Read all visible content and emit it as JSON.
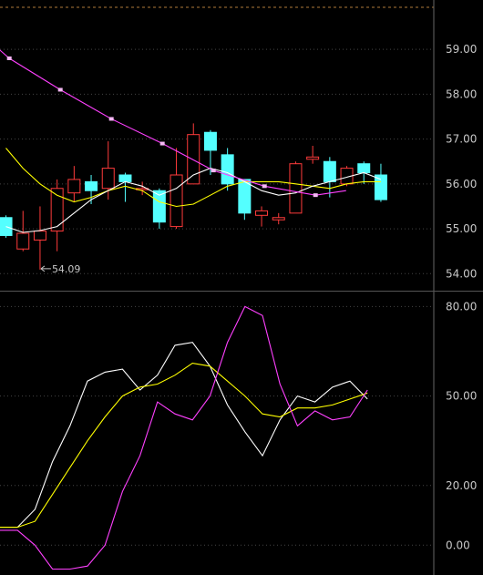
{
  "chart_data": [
    {
      "type": "candlestick",
      "ylim": [
        53.6,
        60.1
      ],
      "y_ticks": [
        54.0,
        55.0,
        56.0,
        57.0,
        58.0,
        59.0
      ],
      "tick_labels": [
        "54.00",
        "55.00",
        "56.00",
        "57.00",
        "58.00",
        "59.00"
      ],
      "grid": true,
      "candles": [
        {
          "o": 55.25,
          "c": 54.85,
          "h": 55.3,
          "l": 54.8
        },
        {
          "o": 54.55,
          "c": 54.9,
          "h": 55.4,
          "l": 54.5
        },
        {
          "o": 54.75,
          "c": 54.95,
          "h": 55.5,
          "l": 54.09
        },
        {
          "o": 54.95,
          "c": 55.9,
          "h": 56.1,
          "l": 54.5
        },
        {
          "o": 55.8,
          "c": 56.1,
          "h": 56.4,
          "l": 55.6
        },
        {
          "o": 56.05,
          "c": 55.85,
          "h": 56.2,
          "l": 55.55
        },
        {
          "o": 55.9,
          "c": 56.35,
          "h": 56.95,
          "l": 55.65
        },
        {
          "o": 56.2,
          "c": 56.05,
          "h": 56.25,
          "l": 55.6
        },
        {
          "o": 55.9,
          "c": 55.9,
          "h": 56.05,
          "l": 55.75
        },
        {
          "o": 55.85,
          "c": 55.15,
          "h": 55.9,
          "l": 55.0
        },
        {
          "o": 55.05,
          "c": 56.2,
          "h": 56.8,
          "l": 55.0
        },
        {
          "o": 56.0,
          "c": 57.1,
          "h": 57.35,
          "l": 56.0
        },
        {
          "o": 57.15,
          "c": 56.75,
          "h": 57.2,
          "l": 56.2
        },
        {
          "o": 56.65,
          "c": 56.0,
          "h": 56.8,
          "l": 55.85
        },
        {
          "o": 56.1,
          "c": 55.35,
          "h": 56.1,
          "l": 55.2
        },
        {
          "o": 55.3,
          "c": 55.4,
          "h": 55.5,
          "l": 55.05
        },
        {
          "o": 55.2,
          "c": 55.25,
          "h": 55.35,
          "l": 55.1
        },
        {
          "o": 55.35,
          "c": 56.45,
          "h": 56.5,
          "l": 55.35
        },
        {
          "o": 56.55,
          "c": 56.6,
          "h": 56.85,
          "l": 56.45
        },
        {
          "o": 56.5,
          "c": 56.05,
          "h": 56.6,
          "l": 55.7
        },
        {
          "o": 56.0,
          "c": 56.35,
          "h": 56.4,
          "l": 55.95
        },
        {
          "o": 56.45,
          "c": 56.25,
          "h": 56.5,
          "l": 56.0
        },
        {
          "o": 56.2,
          "c": 55.65,
          "h": 56.45,
          "l": 55.6
        }
      ],
      "ma_short": [
        55.05,
        54.92,
        54.96,
        55.05,
        55.35,
        55.65,
        55.85,
        56.05,
        55.95,
        55.75,
        55.9,
        56.2,
        56.35,
        56.25,
        56.05,
        55.85,
        55.75,
        55.8,
        55.95,
        56.05,
        56.15,
        56.25,
        56.1
      ],
      "ma_long": [
        56.8,
        56.35,
        56.0,
        55.75,
        55.6,
        55.7,
        55.85,
        55.95,
        55.85,
        55.6,
        55.5,
        55.55,
        55.75,
        55.95,
        56.05,
        56.05,
        56.05,
        56.0,
        55.95,
        55.9,
        56.0,
        56.05,
        56.05
      ],
      "ma_trend": [
        {
          "i": 0,
          "v": 59.0
        },
        {
          "i": 1,
          "v": 58.8
        },
        {
          "i": 6,
          "v": 58.1
        },
        {
          "i": 11,
          "v": 57.45
        },
        {
          "i": 16,
          "v": 56.9
        },
        {
          "i": 21,
          "v": 56.3
        },
        {
          "i": 26,
          "v": 55.95
        },
        {
          "i": 31,
          "v": 55.75
        },
        {
          "i": 34,
          "v": 55.85
        }
      ],
      "annotations": [
        {
          "text": "54.09"
        }
      ],
      "colors": {
        "up": "#ff3b3b",
        "down": "#54ffff",
        "ma_short": "#ffffff",
        "ma_long": "#ffff00",
        "ma_trend": "#ff40ff",
        "grid": "#444444"
      }
    },
    {
      "type": "line",
      "ylim": [
        -10,
        85
      ],
      "y_ticks": [
        0,
        20,
        50,
        80
      ],
      "tick_labels": [
        "0.00",
        "20.00",
        "50.00",
        "80.00"
      ],
      "grid": true,
      "series": [
        {
          "values": [
            6,
            6,
            12,
            28,
            40,
            55,
            58,
            59,
            52,
            57,
            67,
            68,
            60,
            47,
            38,
            30,
            42,
            50,
            48,
            53,
            55,
            49
          ],
          "color": "#ffffff"
        },
        {
          "values": [
            6,
            6,
            8,
            17,
            26,
            35,
            43,
            50,
            53,
            54,
            57,
            61,
            60,
            55,
            50,
            44,
            43,
            46,
            46,
            47,
            49,
            51
          ],
          "color": "#ffff00"
        },
        {
          "values": [
            5,
            5,
            0,
            -8,
            -8,
            -7,
            0,
            18,
            30,
            48,
            44,
            42,
            50,
            68,
            80,
            77,
            54,
            40,
            45,
            42,
            43,
            52
          ],
          "color": "#ff40ff"
        }
      ],
      "colors": {
        "grid": "#444444"
      }
    }
  ]
}
